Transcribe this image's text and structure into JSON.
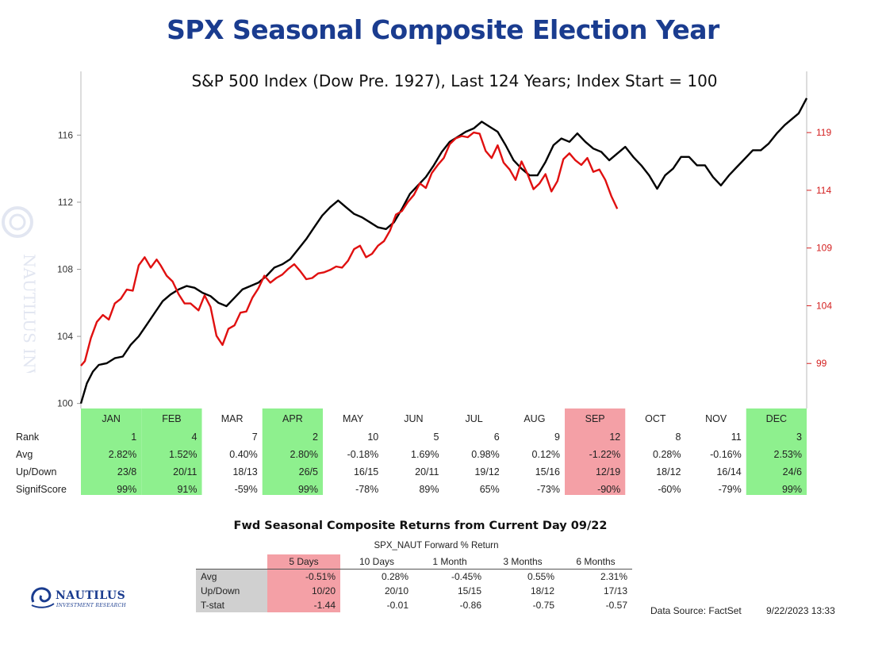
{
  "page": {
    "title": "SPX Seasonal Composite Election Year",
    "watermark_text": "NAUTILUS INVESTMENT RESEARCH"
  },
  "chart_data": {
    "type": "line",
    "title": "S&P 500 Index (Dow Pre. 1927), Last 124 Years; Index Start = 100",
    "y_left": {
      "ticks": [
        100,
        104,
        108,
        112,
        116
      ],
      "labels": [
        "100",
        "104",
        "108",
        "112",
        "116"
      ],
      "range": [
        99.7,
        119.8
      ]
    },
    "y_right": {
      "ticks": [
        99,
        104,
        109,
        114,
        119
      ],
      "labels": [
        "99",
        "104",
        "109",
        "114",
        "119"
      ],
      "range": [
        95.1,
        124.3
      ]
    },
    "x_range": [
      1,
      365
    ],
    "series": [
      {
        "color": "#000000",
        "axis": "left",
        "points": [
          [
            1,
            100.0
          ],
          [
            4,
            101.2
          ],
          [
            7,
            101.9
          ],
          [
            10,
            102.3
          ],
          [
            14,
            102.4
          ],
          [
            18,
            102.7
          ],
          [
            22,
            102.8
          ],
          [
            26,
            103.5
          ],
          [
            30,
            104.0
          ],
          [
            34,
            104.7
          ],
          [
            38,
            105.4
          ],
          [
            42,
            106.1
          ],
          [
            46,
            106.5
          ],
          [
            50,
            106.8
          ],
          [
            54,
            107.0
          ],
          [
            58,
            106.9
          ],
          [
            62,
            106.6
          ],
          [
            66,
            106.4
          ],
          [
            70,
            106.0
          ],
          [
            74,
            105.8
          ],
          [
            78,
            106.3
          ],
          [
            82,
            106.8
          ],
          [
            86,
            107.0
          ],
          [
            90,
            107.2
          ],
          [
            94,
            107.6
          ],
          [
            98,
            108.1
          ],
          [
            102,
            108.3
          ],
          [
            106,
            108.6
          ],
          [
            110,
            109.2
          ],
          [
            114,
            109.8
          ],
          [
            118,
            110.5
          ],
          [
            122,
            111.2
          ],
          [
            126,
            111.7
          ],
          [
            130,
            112.1
          ],
          [
            134,
            111.7
          ],
          [
            138,
            111.3
          ],
          [
            142,
            111.1
          ],
          [
            146,
            110.8
          ],
          [
            150,
            110.5
          ],
          [
            154,
            110.4
          ],
          [
            158,
            110.8
          ],
          [
            162,
            111.6
          ],
          [
            166,
            112.5
          ],
          [
            170,
            113.0
          ],
          [
            174,
            113.5
          ],
          [
            178,
            114.2
          ],
          [
            182,
            115.0
          ],
          [
            186,
            115.6
          ],
          [
            190,
            115.9
          ],
          [
            194,
            116.2
          ],
          [
            198,
            116.4
          ],
          [
            202,
            116.8
          ],
          [
            206,
            116.5
          ],
          [
            210,
            116.2
          ],
          [
            214,
            115.4
          ],
          [
            218,
            114.5
          ],
          [
            222,
            114.0
          ],
          [
            226,
            113.6
          ],
          [
            230,
            113.6
          ],
          [
            234,
            114.4
          ],
          [
            238,
            115.4
          ],
          [
            242,
            115.8
          ],
          [
            246,
            115.6
          ],
          [
            250,
            116.1
          ],
          [
            254,
            115.6
          ],
          [
            258,
            115.2
          ],
          [
            262,
            115.0
          ],
          [
            266,
            114.5
          ],
          [
            270,
            114.9
          ],
          [
            274,
            115.3
          ],
          [
            278,
            114.7
          ],
          [
            282,
            114.2
          ],
          [
            286,
            113.6
          ],
          [
            290,
            112.8
          ],
          [
            294,
            113.6
          ],
          [
            298,
            114.0
          ],
          [
            302,
            114.7
          ],
          [
            306,
            114.7
          ],
          [
            310,
            114.2
          ],
          [
            314,
            114.2
          ],
          [
            318,
            113.5
          ],
          [
            322,
            113.0
          ],
          [
            326,
            113.6
          ],
          [
            330,
            114.1
          ],
          [
            334,
            114.6
          ],
          [
            338,
            115.1
          ],
          [
            342,
            115.1
          ],
          [
            346,
            115.5
          ],
          [
            350,
            116.1
          ],
          [
            354,
            116.6
          ],
          [
            358,
            117.0
          ],
          [
            361,
            117.3
          ],
          [
            365,
            118.2
          ]
        ]
      },
      {
        "color": "#e01010",
        "axis": "right",
        "points": [
          [
            1,
            98.8
          ],
          [
            3,
            99.2
          ],
          [
            6,
            101.2
          ],
          [
            9,
            102.6
          ],
          [
            12,
            103.2
          ],
          [
            15,
            102.8
          ],
          [
            18,
            104.2
          ],
          [
            21,
            104.6
          ],
          [
            24,
            105.4
          ],
          [
            27,
            105.3
          ],
          [
            30,
            107.5
          ],
          [
            33,
            108.2
          ],
          [
            36,
            107.3
          ],
          [
            39,
            108.0
          ],
          [
            41,
            107.5
          ],
          [
            44,
            106.6
          ],
          [
            47,
            106.1
          ],
          [
            50,
            105.0
          ],
          [
            53,
            104.2
          ],
          [
            56,
            104.2
          ],
          [
            60,
            103.6
          ],
          [
            63,
            104.9
          ],
          [
            66,
            103.9
          ],
          [
            69,
            101.4
          ],
          [
            72,
            100.6
          ],
          [
            75,
            102.0
          ],
          [
            78,
            102.3
          ],
          [
            81,
            103.4
          ],
          [
            84,
            103.5
          ],
          [
            87,
            104.7
          ],
          [
            90,
            105.5
          ],
          [
            93,
            106.6
          ],
          [
            96,
            106.0
          ],
          [
            99,
            106.4
          ],
          [
            102,
            106.7
          ],
          [
            105,
            107.2
          ],
          [
            108,
            107.6
          ],
          [
            111,
            107.0
          ],
          [
            114,
            106.3
          ],
          [
            117,
            106.4
          ],
          [
            120,
            106.8
          ],
          [
            123,
            106.9
          ],
          [
            126,
            107.1
          ],
          [
            129,
            107.4
          ],
          [
            132,
            107.3
          ],
          [
            135,
            107.9
          ],
          [
            138,
            108.9
          ],
          [
            141,
            109.2
          ],
          [
            144,
            108.2
          ],
          [
            147,
            108.5
          ],
          [
            150,
            109.2
          ],
          [
            153,
            109.6
          ],
          [
            156,
            110.5
          ],
          [
            159,
            111.9
          ],
          [
            162,
            112.2
          ],
          [
            165,
            113.0
          ],
          [
            168,
            113.6
          ],
          [
            171,
            114.6
          ],
          [
            174,
            114.2
          ],
          [
            177,
            115.5
          ],
          [
            180,
            116.2
          ],
          [
            183,
            116.8
          ],
          [
            186,
            118.0
          ],
          [
            189,
            118.5
          ],
          [
            192,
            118.7
          ],
          [
            195,
            118.6
          ],
          [
            198,
            119.0
          ],
          [
            201,
            118.9
          ],
          [
            204,
            117.4
          ],
          [
            207,
            116.8
          ],
          [
            210,
            117.9
          ],
          [
            213,
            116.4
          ],
          [
            216,
            115.8
          ],
          [
            219,
            114.9
          ],
          [
            222,
            116.5
          ],
          [
            225,
            115.4
          ],
          [
            228,
            114.1
          ],
          [
            231,
            114.6
          ],
          [
            234,
            115.4
          ],
          [
            237,
            113.9
          ],
          [
            240,
            114.8
          ],
          [
            243,
            116.7
          ],
          [
            246,
            117.2
          ],
          [
            249,
            116.6
          ],
          [
            252,
            116.2
          ],
          [
            255,
            116.8
          ],
          [
            258,
            115.6
          ],
          [
            261,
            115.8
          ],
          [
            264,
            114.9
          ],
          [
            267,
            113.5
          ],
          [
            270,
            112.4
          ]
        ]
      }
    ],
    "months": [
      "JAN",
      "FEB",
      "MAR",
      "APR",
      "MAY",
      "JUN",
      "JUL",
      "AUG",
      "SEP",
      "OCT",
      "NOV",
      "DEC"
    ],
    "month_status": [
      "green",
      "green",
      "none",
      "green",
      "none",
      "none",
      "none",
      "none",
      "red",
      "none",
      "none",
      "green"
    ],
    "stats_rows": [
      {
        "label": "Rank",
        "values": [
          "1",
          "4",
          "7",
          "2",
          "10",
          "5",
          "6",
          "9",
          "12",
          "8",
          "11",
          "3"
        ]
      },
      {
        "label": "Avg",
        "values": [
          "2.82%",
          "1.52%",
          "0.40%",
          "2.80%",
          "-0.18%",
          "1.69%",
          "0.98%",
          "0.12%",
          "-1.22%",
          "0.28%",
          "-0.16%",
          "2.53%"
        ]
      },
      {
        "label": "Up/Down",
        "values": [
          "23/8",
          "20/11",
          "18/13",
          "26/5",
          "16/15",
          "20/11",
          "19/12",
          "15/16",
          "12/19",
          "18/12",
          "16/14",
          "24/6"
        ]
      },
      {
        "label": "SignifScore",
        "values": [
          "99%",
          "91%",
          "-59%",
          "99%",
          "-78%",
          "89%",
          "65%",
          "-73%",
          "-90%",
          "-60%",
          "-79%",
          "99%"
        ]
      }
    ],
    "colors": {
      "green": "#8ef08e",
      "red": "#f4a0a6"
    }
  },
  "forward": {
    "title": "Fwd Seasonal Composite Returns from Current Day 09/22",
    "subtitle": "SPX_NAUT Forward % Return",
    "columns": [
      "5 Days",
      "10 Days",
      "1 Month",
      "3 Months",
      "6 Months"
    ],
    "rows": [
      {
        "label": "Avg",
        "values": [
          "-0.51%",
          "0.28%",
          "-0.45%",
          "0.55%",
          "2.31%"
        ]
      },
      {
        "label": "Up/Down",
        "values": [
          "10/20",
          "20/10",
          "15/15",
          "18/12",
          "17/13"
        ]
      },
      {
        "label": "T-stat",
        "values": [
          "-1.44",
          "-0.01",
          "-0.86",
          "-0.75",
          "-0.57"
        ]
      }
    ]
  },
  "footer": {
    "logo_name": "NAUTILUS",
    "logo_sub": "INVESTMENT RESEARCH",
    "source": "Data Source: FactSet",
    "datetime": "9/22/2023 13:33"
  }
}
